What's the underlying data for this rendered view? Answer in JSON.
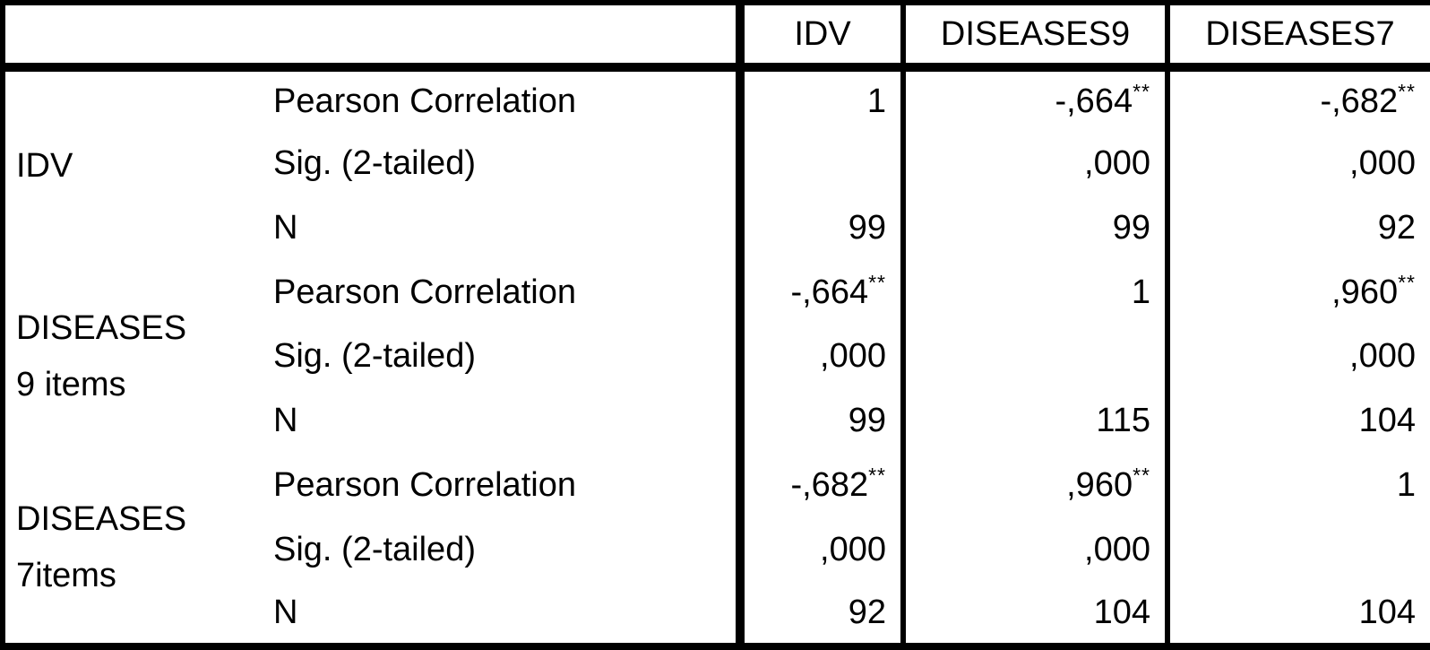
{
  "chart_data": {
    "type": "table",
    "column_headers": [
      "IDV",
      "DISEASES9",
      "DISEASES7"
    ],
    "variables": [
      "IDV",
      "DISEASES 9 items",
      "DISEASES 7items"
    ],
    "stat_row_labels": [
      "Pearson Correlation",
      "Sig. (2-tailed)",
      "N"
    ],
    "significance_marker": "**",
    "decimal_separator": ",",
    "correlation_matrix": [
      [
        1,
        -0.664,
        -0.682
      ],
      [
        -0.664,
        1,
        0.96
      ],
      [
        -0.682,
        0.96,
        1
      ]
    ],
    "sig_2tailed_matrix": [
      [
        null,
        0.0,
        0.0
      ],
      [
        0.0,
        null,
        0.0
      ],
      [
        0.0,
        0.0,
        null
      ]
    ],
    "n_matrix": [
      [
        99,
        99,
        92
      ],
      [
        99,
        115,
        104
      ],
      [
        92,
        104,
        104
      ]
    ],
    "row_groups": [
      {
        "variable": "IDV",
        "variable_line2": "",
        "rows": [
          {
            "stat": "Pearson Correlation",
            "cells": [
              {
                "v": "1"
              },
              {
                "v": "-,664",
                "sup": "**"
              },
              {
                "v": "-,682",
                "sup": "**"
              }
            ]
          },
          {
            "stat": "Sig. (2-tailed)",
            "cells": [
              {
                "v": ""
              },
              {
                "v": ",000"
              },
              {
                "v": ",000"
              }
            ]
          },
          {
            "stat": "N",
            "cells": [
              {
                "v": "99"
              },
              {
                "v": "99"
              },
              {
                "v": "92"
              }
            ]
          }
        ]
      },
      {
        "variable": "DISEASES",
        "variable_line2": "9 items",
        "rows": [
          {
            "stat": "Pearson Correlation",
            "cells": [
              {
                "v": "-,664",
                "sup": "**"
              },
              {
                "v": "1"
              },
              {
                "v": ",960",
                "sup": "**"
              }
            ]
          },
          {
            "stat": "Sig. (2-tailed)",
            "cells": [
              {
                "v": ",000"
              },
              {
                "v": ""
              },
              {
                "v": ",000"
              }
            ]
          },
          {
            "stat": "N",
            "cells": [
              {
                "v": "99"
              },
              {
                "v": "115"
              },
              {
                "v": "104"
              }
            ]
          }
        ]
      },
      {
        "variable": "DISEASES",
        "variable_line2": "7items",
        "rows": [
          {
            "stat": "Pearson Correlation",
            "cells": [
              {
                "v": "-,682",
                "sup": "**"
              },
              {
                "v": ",960",
                "sup": "**"
              },
              {
                "v": "1"
              }
            ]
          },
          {
            "stat": "Sig. (2-tailed)",
            "cells": [
              {
                "v": ",000"
              },
              {
                "v": ",000"
              },
              {
                "v": ""
              }
            ]
          },
          {
            "stat": "N",
            "cells": [
              {
                "v": "92"
              },
              {
                "v": "104"
              },
              {
                "v": "104"
              }
            ]
          }
        ]
      }
    ]
  },
  "colors": {
    "text": "#000000",
    "border": "#000000",
    "background": "#ffffff"
  }
}
